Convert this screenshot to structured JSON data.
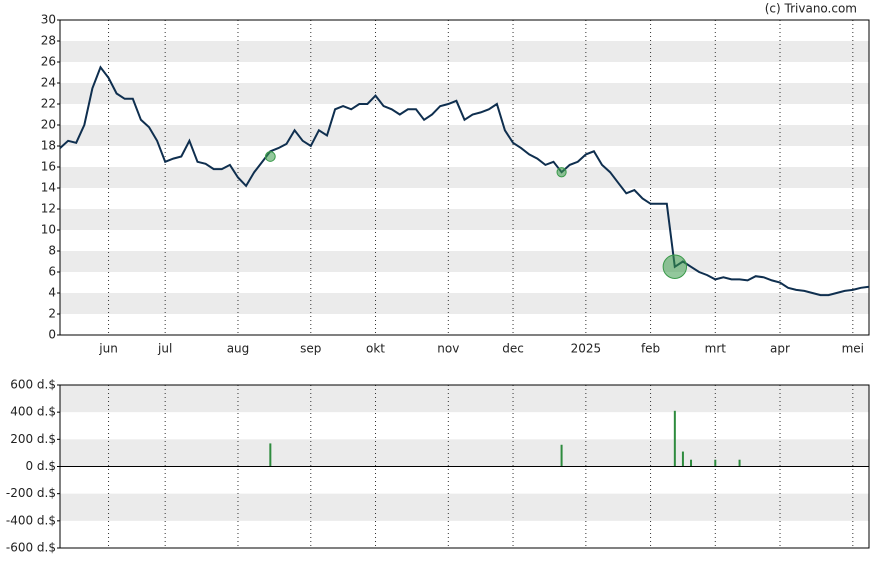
{
  "source": "(c) Trivano.com",
  "chart_data": [
    {
      "type": "line",
      "color": "#0f2f4f",
      "marker_color": "#3a9a4a",
      "bands": true,
      "categories": [
        null,
        null,
        null,
        null,
        null,
        null,
        "jun",
        null,
        null,
        null,
        null,
        null,
        null,
        "jul",
        null,
        null,
        null,
        null,
        null,
        null,
        null,
        null,
        "aug",
        null,
        null,
        null,
        null,
        null,
        null,
        null,
        null,
        "sep",
        null,
        null,
        null,
        null,
        null,
        null,
        null,
        "okt",
        null,
        null,
        null,
        null,
        null,
        null,
        null,
        null,
        "nov",
        null,
        null,
        null,
        null,
        null,
        null,
        null,
        "dec",
        null,
        null,
        null,
        null,
        null,
        null,
        null,
        null,
        "2025",
        null,
        null,
        null,
        null,
        null,
        null,
        null,
        "feb",
        null,
        null,
        null,
        null,
        null,
        null,
        null,
        "mrt",
        null,
        null,
        null,
        null,
        null,
        null,
        null,
        "apr",
        null,
        null,
        null,
        null,
        null,
        null,
        null,
        null,
        "mei",
        null,
        null
      ],
      "values": [
        17.8,
        18.5,
        18.3,
        20,
        23.5,
        25.5,
        24.5,
        23,
        22.5,
        22.5,
        20.5,
        19.8,
        18.5,
        16.5,
        16.8,
        17,
        18.5,
        16.5,
        16.3,
        15.8,
        15.8,
        16.2,
        15,
        14.2,
        15.5,
        16.5,
        17.5,
        17.8,
        18.2,
        19.5,
        18.5,
        18,
        19.5,
        19,
        21.5,
        21.8,
        21.5,
        22,
        22,
        22.8,
        21.8,
        21.5,
        21,
        21.5,
        21.5,
        20.5,
        21,
        21.8,
        22,
        22.3,
        20.5,
        21,
        21.2,
        21.5,
        22,
        19.5,
        18.3,
        17.8,
        17.2,
        16.8,
        16.2,
        16.5,
        15.5,
        16.2,
        16.5,
        17.2,
        17.5,
        16.2,
        15.5,
        14.5,
        13.5,
        13.8,
        13,
        12.5,
        12.5,
        12.5,
        6.5,
        7,
        6.5,
        6,
        5.7,
        5.3,
        5.5,
        5.3,
        5.3,
        5.2,
        5.6,
        5.5,
        5.2,
        5,
        4.5,
        4.3,
        4.2,
        4,
        3.8,
        3.8,
        4,
        4.2,
        4.3,
        4.5,
        4.6
      ],
      "marker_values": [
        null,
        null,
        null,
        null,
        null,
        null,
        null,
        null,
        null,
        null,
        null,
        null,
        null,
        null,
        null,
        null,
        null,
        null,
        null,
        null,
        null,
        null,
        null,
        null,
        null,
        null,
        17,
        null,
        null,
        null,
        null,
        null,
        null,
        null,
        null,
        null,
        null,
        null,
        null,
        null,
        null,
        null,
        null,
        null,
        null,
        null,
        null,
        null,
        null,
        null,
        null,
        null,
        null,
        null,
        null,
        null,
        null,
        null,
        null,
        null,
        null,
        null,
        15.5,
        null,
        null,
        null,
        null,
        null,
        null,
        null,
        null,
        null,
        null,
        null,
        null,
        null,
        6.5,
        null,
        null,
        null,
        null,
        null,
        null,
        null,
        null,
        null,
        null,
        null,
        null,
        null,
        null,
        null,
        null,
        null,
        null,
        null,
        null,
        null,
        null,
        null,
        null
      ],
      "ylim": [
        0,
        30
      ],
      "yticks": [
        0,
        2,
        4,
        6,
        8,
        10,
        12,
        14,
        16,
        18,
        20,
        22,
        24,
        26,
        28,
        30
      ]
    },
    {
      "type": "bar",
      "color": "#2e8b3e",
      "bands": true,
      "values": [
        null,
        null,
        null,
        null,
        null,
        null,
        null,
        null,
        null,
        null,
        null,
        null,
        null,
        null,
        null,
        null,
        null,
        null,
        null,
        null,
        null,
        null,
        null,
        null,
        null,
        null,
        170,
        null,
        null,
        null,
        null,
        null,
        null,
        null,
        null,
        null,
        null,
        null,
        null,
        null,
        null,
        null,
        null,
        null,
        null,
        null,
        null,
        null,
        null,
        null,
        null,
        null,
        null,
        null,
        null,
        null,
        null,
        null,
        null,
        null,
        null,
        null,
        160,
        null,
        null,
        null,
        null,
        null,
        null,
        null,
        null,
        null,
        null,
        null,
        null,
        null,
        410,
        110,
        50,
        null,
        null,
        50,
        null,
        null,
        50,
        null,
        null,
        null,
        null,
        null,
        null,
        null,
        null,
        null,
        null,
        null,
        null,
        null,
        null,
        null,
        null
      ],
      "ylim": [
        -600,
        600
      ],
      "yticks": [
        {
          "value": -600,
          "label": "-600 d.$"
        },
        {
          "value": -400,
          "label": "-400 d.$"
        },
        {
          "value": -200,
          "label": "-200 d.$"
        },
        {
          "value": 0,
          "label": "0 d.$"
        },
        {
          "value": 200,
          "label": "200 d.$"
        },
        {
          "value": 400,
          "label": "400 d.$"
        },
        {
          "value": 600,
          "label": "600 d.$"
        }
      ]
    }
  ]
}
